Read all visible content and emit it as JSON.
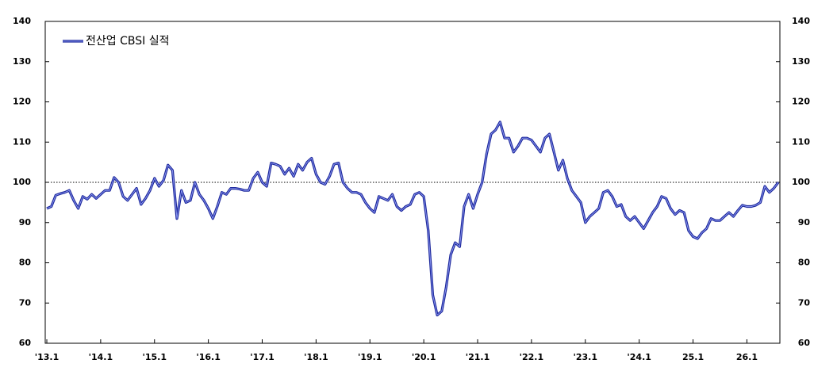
{
  "chart_data": {
    "type": "line",
    "legend_label": "전산업 CBSI 실적",
    "legend_position": "upper left",
    "categories": [
      "'13.1",
      null,
      null,
      null,
      null,
      null,
      null,
      null,
      null,
      null,
      null,
      null,
      "'14.1",
      null,
      null,
      null,
      null,
      null,
      null,
      null,
      null,
      null,
      null,
      null,
      "'15.1",
      null,
      null,
      null,
      null,
      null,
      null,
      null,
      null,
      null,
      null,
      null,
      "'16.1",
      null,
      null,
      null,
      null,
      null,
      null,
      null,
      null,
      null,
      null,
      null,
      "'17.1",
      null,
      null,
      null,
      null,
      null,
      null,
      null,
      null,
      null,
      null,
      null,
      "'18.1",
      null,
      null,
      null,
      null,
      null,
      null,
      null,
      null,
      null,
      null,
      null,
      "'19.1",
      null,
      null,
      null,
      null,
      null,
      null,
      null,
      null,
      null,
      null,
      null,
      "'20.1",
      null,
      null,
      null,
      null,
      null,
      null,
      null,
      null,
      null,
      null,
      null,
      "'21.1",
      null,
      null,
      null,
      null,
      null,
      null,
      null,
      null,
      null,
      null,
      null,
      "'22.1",
      null,
      null,
      null,
      null,
      null,
      null,
      null,
      null,
      null,
      null,
      null,
      "'23.1",
      null,
      null,
      null,
      null,
      null,
      null,
      null,
      null,
      null,
      null,
      null,
      "'24.1",
      null,
      null,
      null,
      null,
      null,
      null,
      null,
      null,
      null,
      null,
      null,
      "25.1",
      null,
      null,
      null,
      null,
      null,
      null,
      null,
      null,
      null,
      null,
      null,
      "26.1",
      null,
      null,
      null,
      null,
      null,
      null,
      null
    ],
    "series": [
      {
        "name": "전산업 CBSI 실적",
        "color": "#1f2a9c",
        "values": [
          93.5,
          94,
          96.8,
          97.2,
          97.5,
          98,
          95.5,
          93.5,
          96.5,
          95.8,
          97,
          96,
          97,
          98,
          98,
          101.2,
          100,
          96.5,
          95.5,
          97,
          98.5,
          94.5,
          96,
          98,
          101,
          99,
          100.5,
          104.3,
          103,
          91,
          98,
          95,
          95.5,
          100,
          97,
          95.5,
          93.5,
          91,
          94,
          97.5,
          97,
          98.5,
          98.5,
          98.3,
          98,
          98,
          101,
          102.5,
          100,
          99,
          104.8,
          104.5,
          104,
          102,
          103.5,
          101.5,
          104.5,
          103,
          105,
          106,
          102,
          100,
          99.5,
          101.5,
          104.5,
          104.8,
          100,
          98.5,
          97.5,
          97.5,
          97,
          95,
          93.5,
          92.5,
          96.5,
          96,
          95.5,
          97,
          94,
          93,
          94,
          94.5,
          97,
          97.5,
          96.5,
          88,
          72,
          67,
          68,
          74,
          82,
          85,
          84,
          94,
          97,
          93.5,
          97,
          100,
          107,
          112,
          113,
          115,
          111,
          111,
          107.5,
          109,
          111,
          111,
          110.5,
          109,
          107.5,
          111,
          112,
          107.5,
          103,
          105.5,
          101,
          98,
          96.5,
          95,
          90,
          91.5,
          92.5,
          93.5,
          97.5,
          98,
          96.5,
          94,
          94.5,
          91.5,
          90.5,
          91.5,
          90,
          88.5,
          90.5,
          92.5,
          94,
          96.5,
          96,
          93.5,
          92,
          93,
          92.5,
          88,
          86.5,
          86,
          87.5,
          88.5,
          91,
          90.5,
          90.5,
          91.5,
          92.5,
          91.5,
          93,
          94.3,
          94,
          94,
          94.3,
          95,
          99,
          97.5,
          98.5,
          100
        ]
      }
    ],
    "reference_line": 100,
    "ylim": [
      60,
      140
    ],
    "yticks": [
      60,
      70,
      80,
      90,
      100,
      110,
      120,
      130,
      140
    ],
    "y2lim": [
      60,
      140
    ],
    "y2ticks": [
      60,
      70,
      80,
      90,
      100,
      110,
      120,
      130,
      140
    ],
    "grid": false
  }
}
